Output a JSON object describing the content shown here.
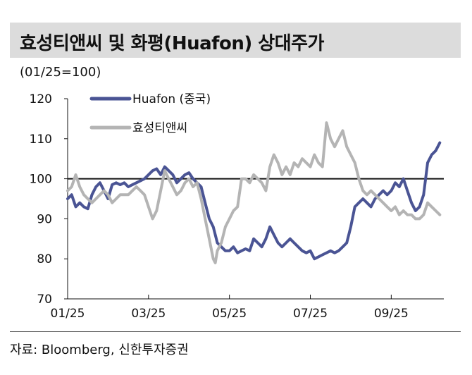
{
  "chart_data": {
    "type": "line",
    "title": "효성티앤씨 및 화평(Huafon) 상대주가",
    "unit_label": "(01/25=100)",
    "source": "자료: Bloomberg, 신한투자증권",
    "ylim": [
      70,
      120
    ],
    "yticks": [
      70,
      80,
      90,
      100,
      110,
      120
    ],
    "reference_line": 100,
    "xlim": [
      0,
      9.3
    ],
    "xticks": [
      {
        "x": 0,
        "label": "01/25"
      },
      {
        "x": 2,
        "label": "03/25"
      },
      {
        "x": 4,
        "label": "05/25"
      },
      {
        "x": 6,
        "label": "07/25"
      },
      {
        "x": 8,
        "label": "09/25"
      }
    ],
    "legend_position": "top-left",
    "series": [
      {
        "name": "Huafon (중국)",
        "color": "#4a5494",
        "points": [
          [
            0.0,
            95
          ],
          [
            0.1,
            96
          ],
          [
            0.2,
            93
          ],
          [
            0.3,
            94
          ],
          [
            0.4,
            93
          ],
          [
            0.5,
            92.5
          ],
          [
            0.6,
            96
          ],
          [
            0.7,
            98
          ],
          [
            0.8,
            99
          ],
          [
            0.9,
            97
          ],
          [
            1.0,
            95
          ],
          [
            1.1,
            98.5
          ],
          [
            1.2,
            99
          ],
          [
            1.3,
            98.5
          ],
          [
            1.4,
            99
          ],
          [
            1.5,
            98
          ],
          [
            1.6,
            98.5
          ],
          [
            1.7,
            99
          ],
          [
            1.8,
            99.5
          ],
          [
            1.9,
            100
          ],
          [
            2.0,
            101
          ],
          [
            2.1,
            102
          ],
          [
            2.2,
            102.5
          ],
          [
            2.3,
            101
          ],
          [
            2.4,
            103
          ],
          [
            2.5,
            102
          ],
          [
            2.6,
            101
          ],
          [
            2.7,
            99
          ],
          [
            2.8,
            100
          ],
          [
            2.9,
            101
          ],
          [
            3.0,
            101.5
          ],
          [
            3.1,
            100
          ],
          [
            3.2,
            99
          ],
          [
            3.3,
            98
          ],
          [
            3.4,
            94
          ],
          [
            3.5,
            90
          ],
          [
            3.6,
            88
          ],
          [
            3.7,
            84
          ],
          [
            3.8,
            83
          ],
          [
            3.9,
            82
          ],
          [
            4.0,
            82
          ],
          [
            4.1,
            83
          ],
          [
            4.2,
            81.5
          ],
          [
            4.3,
            82
          ],
          [
            4.4,
            82.5
          ],
          [
            4.5,
            82
          ],
          [
            4.6,
            85
          ],
          [
            4.7,
            84
          ],
          [
            4.8,
            83
          ],
          [
            4.9,
            85
          ],
          [
            5.0,
            88
          ],
          [
            5.1,
            86
          ],
          [
            5.2,
            84
          ],
          [
            5.3,
            83
          ],
          [
            5.4,
            84
          ],
          [
            5.5,
            85
          ],
          [
            5.6,
            84
          ],
          [
            5.7,
            83
          ],
          [
            5.8,
            82
          ],
          [
            5.9,
            81.5
          ],
          [
            6.0,
            82
          ],
          [
            6.1,
            80
          ],
          [
            6.2,
            80.5
          ],
          [
            6.3,
            81
          ],
          [
            6.4,
            81.5
          ],
          [
            6.5,
            82
          ],
          [
            6.6,
            81.5
          ],
          [
            6.7,
            82
          ],
          [
            6.8,
            83
          ],
          [
            6.9,
            84
          ],
          [
            7.0,
            88
          ],
          [
            7.1,
            93
          ],
          [
            7.2,
            94
          ],
          [
            7.3,
            95
          ],
          [
            7.4,
            94
          ],
          [
            7.5,
            93
          ],
          [
            7.6,
            95
          ],
          [
            7.7,
            96
          ],
          [
            7.8,
            97
          ],
          [
            7.9,
            96
          ],
          [
            8.0,
            97
          ],
          [
            8.1,
            99
          ],
          [
            8.2,
            98
          ],
          [
            8.3,
            100
          ],
          [
            8.4,
            97
          ],
          [
            8.5,
            94
          ],
          [
            8.6,
            92
          ],
          [
            8.7,
            93
          ],
          [
            8.8,
            96
          ],
          [
            8.9,
            104
          ],
          [
            9.0,
            106
          ],
          [
            9.1,
            107
          ],
          [
            9.15,
            108
          ],
          [
            9.2,
            109
          ]
        ]
      },
      {
        "name": "효성티앤씨",
        "color": "#b4b4b4",
        "points": [
          [
            0.0,
            97
          ],
          [
            0.1,
            98
          ],
          [
            0.2,
            101
          ],
          [
            0.3,
            98
          ],
          [
            0.4,
            96
          ],
          [
            0.5,
            95
          ],
          [
            0.6,
            94
          ],
          [
            0.7,
            95
          ],
          [
            0.8,
            96
          ],
          [
            0.9,
            97
          ],
          [
            1.0,
            96
          ],
          [
            1.1,
            94
          ],
          [
            1.2,
            95
          ],
          [
            1.3,
            96
          ],
          [
            1.4,
            96
          ],
          [
            1.5,
            96
          ],
          [
            1.6,
            97
          ],
          [
            1.7,
            98
          ],
          [
            1.8,
            97
          ],
          [
            1.9,
            96
          ],
          [
            2.0,
            93
          ],
          [
            2.1,
            90
          ],
          [
            2.2,
            92
          ],
          [
            2.3,
            97
          ],
          [
            2.4,
            102
          ],
          [
            2.5,
            100
          ],
          [
            2.6,
            98
          ],
          [
            2.7,
            96
          ],
          [
            2.8,
            97
          ],
          [
            2.9,
            99
          ],
          [
            3.0,
            100
          ],
          [
            3.1,
            98
          ],
          [
            3.2,
            99
          ],
          [
            3.3,
            95
          ],
          [
            3.4,
            90
          ],
          [
            3.5,
            85
          ],
          [
            3.6,
            80
          ],
          [
            3.65,
            79
          ],
          [
            3.7,
            82
          ],
          [
            3.8,
            84
          ],
          [
            3.9,
            88
          ],
          [
            4.0,
            90
          ],
          [
            4.1,
            92
          ],
          [
            4.2,
            93
          ],
          [
            4.3,
            100
          ],
          [
            4.4,
            100
          ],
          [
            4.5,
            99
          ],
          [
            4.6,
            101
          ],
          [
            4.7,
            100
          ],
          [
            4.8,
            99
          ],
          [
            4.9,
            97
          ],
          [
            5.0,
            103
          ],
          [
            5.1,
            106
          ],
          [
            5.2,
            104
          ],
          [
            5.3,
            101
          ],
          [
            5.4,
            103
          ],
          [
            5.5,
            101
          ],
          [
            5.6,
            104
          ],
          [
            5.7,
            103
          ],
          [
            5.8,
            105
          ],
          [
            5.9,
            104
          ],
          [
            6.0,
            103
          ],
          [
            6.1,
            106
          ],
          [
            6.2,
            104
          ],
          [
            6.3,
            103
          ],
          [
            6.4,
            114
          ],
          [
            6.5,
            110
          ],
          [
            6.6,
            108
          ],
          [
            6.7,
            110
          ],
          [
            6.8,
            112
          ],
          [
            6.9,
            108
          ],
          [
            7.0,
            106
          ],
          [
            7.1,
            104
          ],
          [
            7.2,
            100
          ],
          [
            7.3,
            97
          ],
          [
            7.4,
            96
          ],
          [
            7.5,
            97
          ],
          [
            7.6,
            96
          ],
          [
            7.7,
            95
          ],
          [
            7.8,
            94
          ],
          [
            7.9,
            93
          ],
          [
            8.0,
            92
          ],
          [
            8.1,
            93
          ],
          [
            8.2,
            91
          ],
          [
            8.3,
            92
          ],
          [
            8.4,
            91
          ],
          [
            8.5,
            91
          ],
          [
            8.6,
            90
          ],
          [
            8.7,
            90
          ],
          [
            8.8,
            91
          ],
          [
            8.9,
            94
          ],
          [
            9.0,
            93
          ],
          [
            9.1,
            92
          ],
          [
            9.2,
            91
          ]
        ]
      }
    ]
  }
}
